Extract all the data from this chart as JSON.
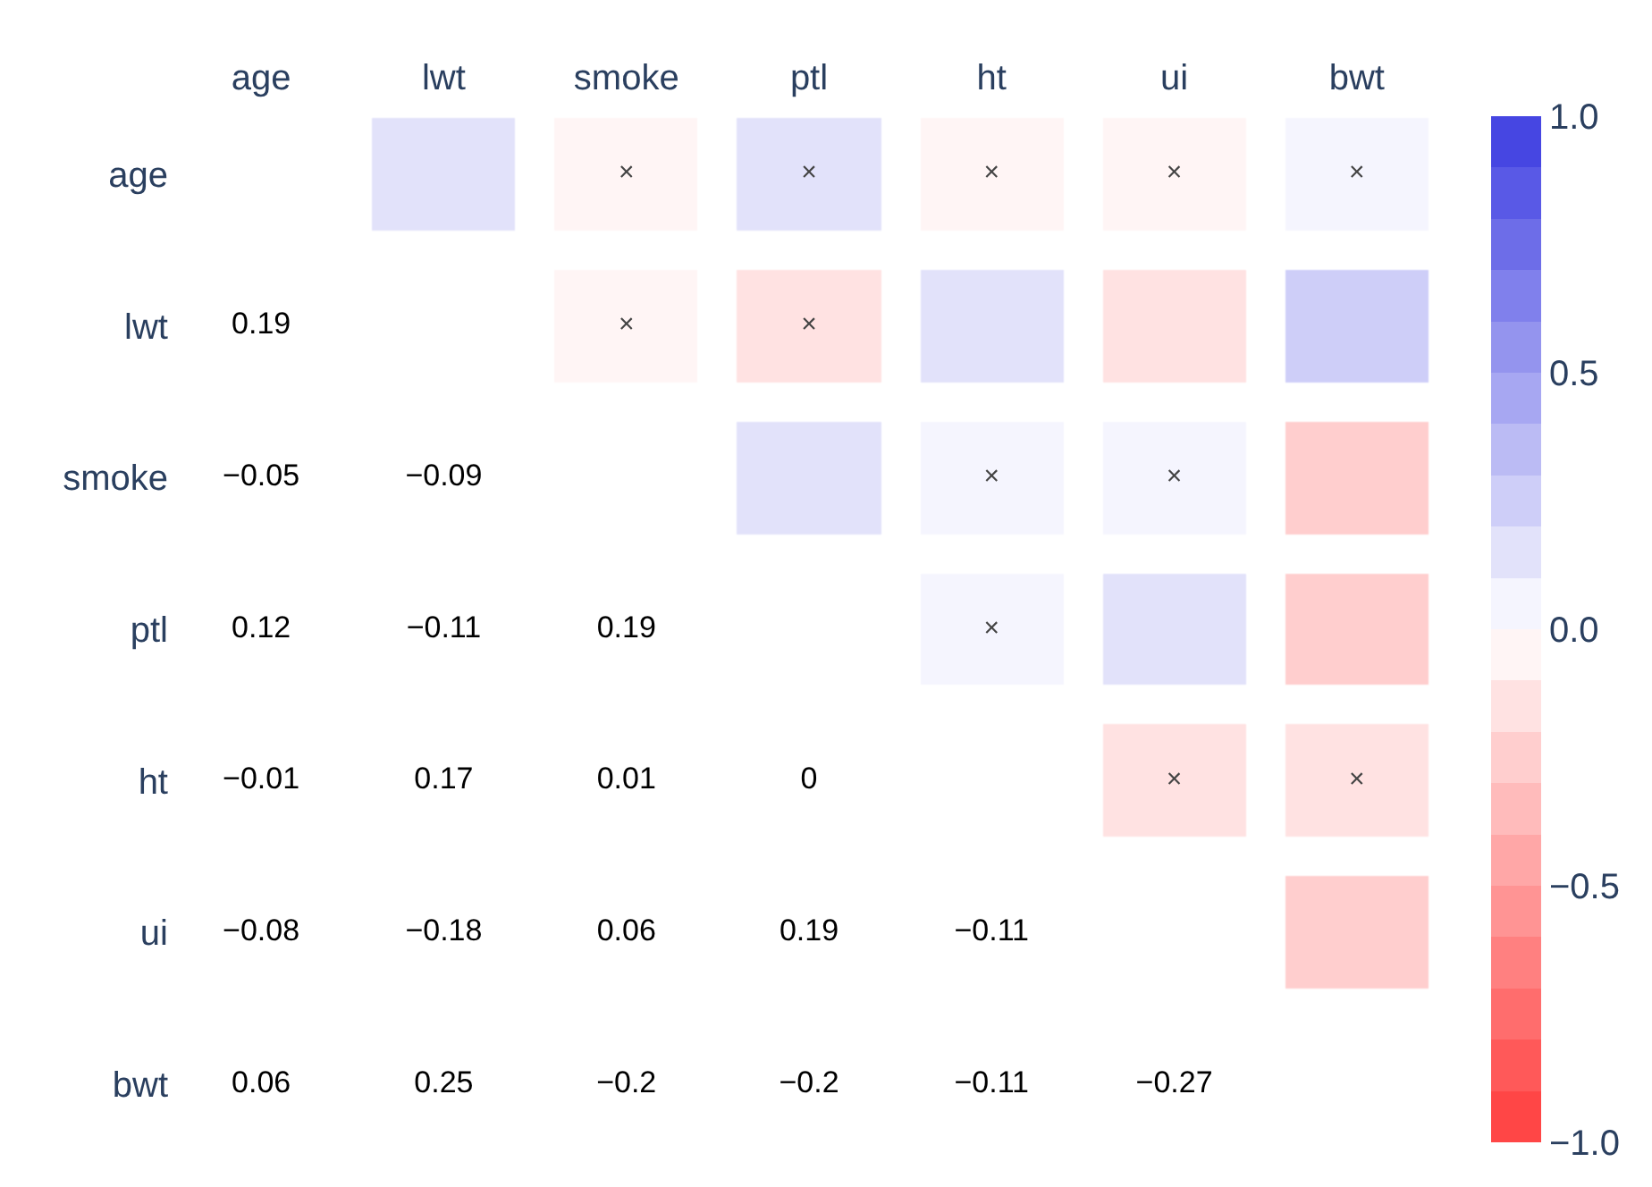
{
  "chart_data": {
    "type": "heatmap",
    "categories": [
      "age",
      "lwt",
      "smoke",
      "ptl",
      "ht",
      "ui",
      "bwt"
    ],
    "y_categories": [
      "age",
      "lwt",
      "smoke",
      "ptl",
      "ht",
      "ui",
      "bwt"
    ],
    "cells": [
      [
        null,
        0.19,
        -0.05,
        0.12,
        -0.01,
        -0.08,
        0.06
      ],
      [
        null,
        null,
        -0.09,
        -0.11,
        0.17,
        -0.18,
        0.25
      ],
      [
        null,
        null,
        null,
        0.19,
        0.01,
        0.06,
        -0.2
      ],
      [
        null,
        null,
        null,
        null,
        0,
        0.19,
        -0.2
      ],
      [
        null,
        null,
        null,
        null,
        null,
        -0.11,
        -0.11
      ],
      [
        null,
        null,
        null,
        null,
        null,
        null,
        -0.27
      ],
      [
        null,
        null,
        null,
        null,
        null,
        null,
        null
      ]
    ],
    "cell_labels": [
      [
        null,
        null,
        "×",
        "×",
        "×",
        "×",
        "×"
      ],
      [
        "0.19",
        null,
        "×",
        "×",
        null,
        null,
        null
      ],
      [
        "−0.05",
        "−0.09",
        null,
        null,
        "×",
        "×",
        null
      ],
      [
        "0.12",
        "−0.11",
        "0.19",
        null,
        "×",
        null,
        null
      ],
      [
        "−0.01",
        "0.17",
        "0.01",
        "0",
        null,
        "×",
        "×"
      ],
      [
        "−0.08",
        "−0.18",
        "0.06",
        "0.19",
        "−0.11",
        null,
        null
      ],
      [
        "0.06",
        "0.25",
        "−0.2",
        "−0.2",
        "−0.11",
        "−0.27",
        null
      ]
    ],
    "clim": [
      -1,
      1
    ],
    "cticks": [
      {
        "value": -1,
        "label": "−1.0"
      },
      {
        "value": -0.5,
        "label": "−0.5"
      },
      {
        "value": 0,
        "label": "0.0"
      },
      {
        "value": 0.5,
        "label": "0.5"
      },
      {
        "value": 1,
        "label": "1.0"
      }
    ]
  }
}
